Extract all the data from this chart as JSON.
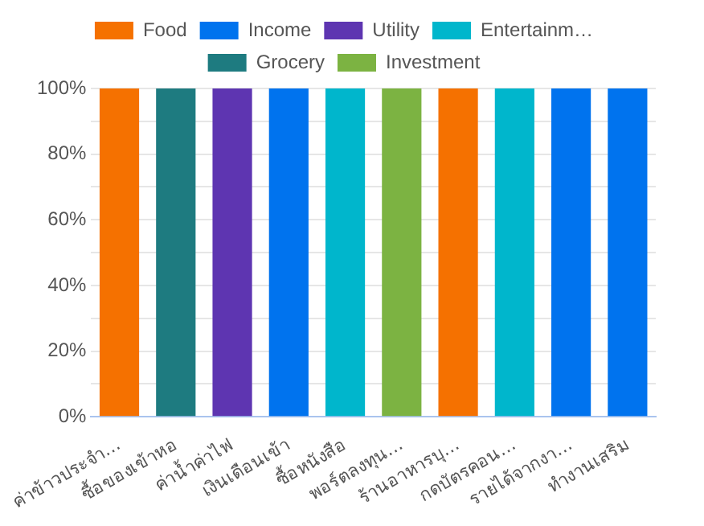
{
  "chart_data": {
    "type": "bar",
    "categories": [
      "ค่าข้าวประจำ…",
      "ซื้อของเข้าหอ",
      "ค่าน้ำค่าไฟ",
      "เงินเดือนเข้า",
      "ซื้อหนังสือ",
      "พอร์ตลงทุน…",
      "ร้านอาหารบุ…",
      "กดบัตรคอน…",
      "รายได้จากงา…",
      "ทำงานเสริม"
    ],
    "series": [
      {
        "name": "Food",
        "color": "#f57100",
        "values": [
          100,
          null,
          null,
          null,
          null,
          null,
          100,
          null,
          null,
          null
        ]
      },
      {
        "name": "Income",
        "color": "#0073ee",
        "values": [
          null,
          null,
          null,
          100,
          null,
          null,
          null,
          null,
          100,
          100
        ]
      },
      {
        "name": "Utility",
        "color": "#5e35b1",
        "values": [
          null,
          null,
          100,
          null,
          null,
          null,
          null,
          null,
          null,
          null
        ]
      },
      {
        "name": "Entertainm…",
        "color": "#00b6cc",
        "values": [
          null,
          null,
          null,
          null,
          100,
          null,
          null,
          100,
          null,
          null
        ]
      },
      {
        "name": "Grocery",
        "color": "#1e7b80",
        "values": [
          null,
          100,
          null,
          null,
          null,
          null,
          null,
          null,
          null,
          null
        ]
      },
      {
        "name": "Investment",
        "color": "#7cb342",
        "values": [
          null,
          null,
          null,
          null,
          null,
          100,
          null,
          null,
          null,
          null
        ]
      }
    ],
    "ylim": [
      0,
      100
    ],
    "yticks": [
      {
        "value": 0,
        "label": "0%"
      },
      {
        "value": 10,
        "label": null
      },
      {
        "value": 20,
        "label": "20%"
      },
      {
        "value": 30,
        "label": null
      },
      {
        "value": 40,
        "label": "40%"
      },
      {
        "value": 50,
        "label": null
      },
      {
        "value": 60,
        "label": "60%"
      },
      {
        "value": 70,
        "label": null
      },
      {
        "value": 80,
        "label": "80%"
      },
      {
        "value": 90,
        "label": null
      },
      {
        "value": 100,
        "label": "100%"
      }
    ],
    "grid": "y",
    "legend": "top"
  }
}
